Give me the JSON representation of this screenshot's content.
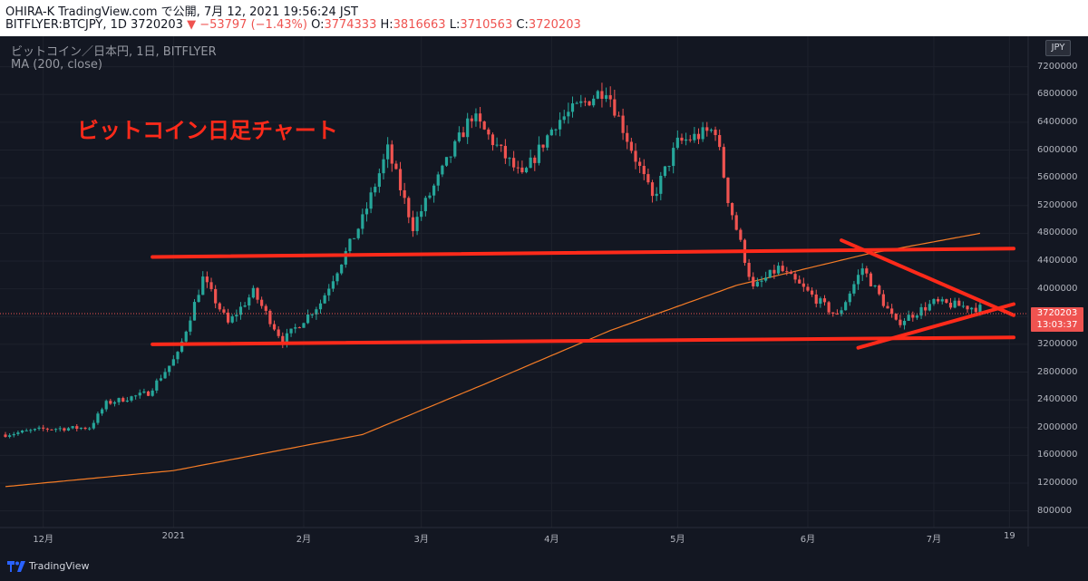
{
  "header": {
    "line1": "OHIRA-K TradingView.com で公開, 7月 12, 2021 19:56:24 JST",
    "symbol": "BITFLYER:BTCJPY, 1D 3720203",
    "change": "▼ −53797 (−1.43%)",
    "o_label": "O:",
    "o_value": "3774333",
    "h_label": "H:",
    "h_value": "3816663",
    "l_label": "L:",
    "l_value": "3710563",
    "c_label": "C:",
    "c_value": "3720203"
  },
  "legend": {
    "series": "ビットコイン／日本円, 1日, BITFLYER",
    "ma": "MA (200, close)"
  },
  "overlay_title": "ビットコイン日足チャート",
  "price_axis": {
    "currency": "JPY",
    "current_price": "3720203",
    "countdown": "13:03:37"
  },
  "footer": {
    "brand": "TradingView"
  },
  "colors": {
    "up": "#26a69a",
    "down": "#ef5350",
    "ma": "#f57c26",
    "drawing": "#ff2a1a",
    "background": "#131722"
  },
  "chart_data": {
    "type": "candlestick",
    "title": "ビットコイン／日本円, 1日, BITFLYER",
    "series": [
      {
        "name": "BTCJPY",
        "anchors": [
          [
            "2020-11-22",
            1900000
          ],
          [
            "2020-12-01",
            1980000
          ],
          [
            "2020-12-12",
            2000000
          ],
          [
            "2020-12-16",
            2350000
          ],
          [
            "2020-12-26",
            2500000
          ],
          [
            "2021-01-02",
            3050000
          ],
          [
            "2021-01-08",
            4150000
          ],
          [
            "2021-01-14",
            3500000
          ],
          [
            "2021-01-20",
            3950000
          ],
          [
            "2021-01-27",
            3250000
          ],
          [
            "2021-02-05",
            3800000
          ],
          [
            "2021-02-15",
            5000000
          ],
          [
            "2021-02-21",
            6000000
          ],
          [
            "2021-02-27",
            4900000
          ],
          [
            "2021-03-13",
            6500000
          ],
          [
            "2021-03-25",
            5600000
          ],
          [
            "2021-04-02",
            6400000
          ],
          [
            "2021-04-14",
            6900000
          ],
          [
            "2021-04-25",
            5300000
          ],
          [
            "2021-05-01",
            6100000
          ],
          [
            "2021-05-10",
            6300000
          ],
          [
            "2021-05-13",
            5300000
          ],
          [
            "2021-05-19",
            4000000
          ],
          [
            "2021-05-25",
            4300000
          ],
          [
            "2021-06-08",
            3600000
          ],
          [
            "2021-06-14",
            4300000
          ],
          [
            "2021-06-22",
            3500000
          ],
          [
            "2021-07-01",
            3800000
          ],
          [
            "2021-07-12",
            3720203
          ]
        ]
      },
      {
        "name": "MA (200, close)",
        "anchors": [
          [
            "2020-11-22",
            1150000
          ],
          [
            "2021-01-01",
            1380000
          ],
          [
            "2021-02-15",
            1900000
          ],
          [
            "2021-03-15",
            2600000
          ],
          [
            "2021-04-15",
            3400000
          ],
          [
            "2021-05-15",
            4050000
          ],
          [
            "2021-06-15",
            4500000
          ],
          [
            "2021-07-12",
            4800000
          ]
        ]
      }
    ],
    "x_ticks": [
      "12月",
      "2021",
      "2月",
      "3月",
      "4月",
      "5月",
      "6月",
      "7月",
      "19"
    ],
    "y_ticks": [
      "800000",
      "1200000",
      "1600000",
      "2000000",
      "2400000",
      "2800000",
      "3200000",
      "3600000",
      "4000000",
      "4400000",
      "4800000",
      "5200000",
      "5600000",
      "6000000",
      "6400000",
      "6800000",
      "7200000"
    ],
    "ylim": [
      560000,
      7640000
    ],
    "xlim": [
      "2020-11-22",
      "2021-07-20"
    ],
    "grid": true,
    "annotations": [
      {
        "type": "trendline",
        "from": [
          "2020-12-27",
          4460000
        ],
        "to": [
          "2021-07-20",
          4580000
        ]
      },
      {
        "type": "trendline",
        "from": [
          "2020-12-27",
          3200000
        ],
        "to": [
          "2021-07-20",
          3300000
        ]
      },
      {
        "type": "trendline",
        "from": [
          "2021-06-09",
          4700000
        ],
        "to": [
          "2021-07-20",
          3620000
        ]
      },
      {
        "type": "trendline",
        "from": [
          "2021-06-13",
          3150000
        ],
        "to": [
          "2021-07-20",
          3780000
        ]
      }
    ]
  }
}
